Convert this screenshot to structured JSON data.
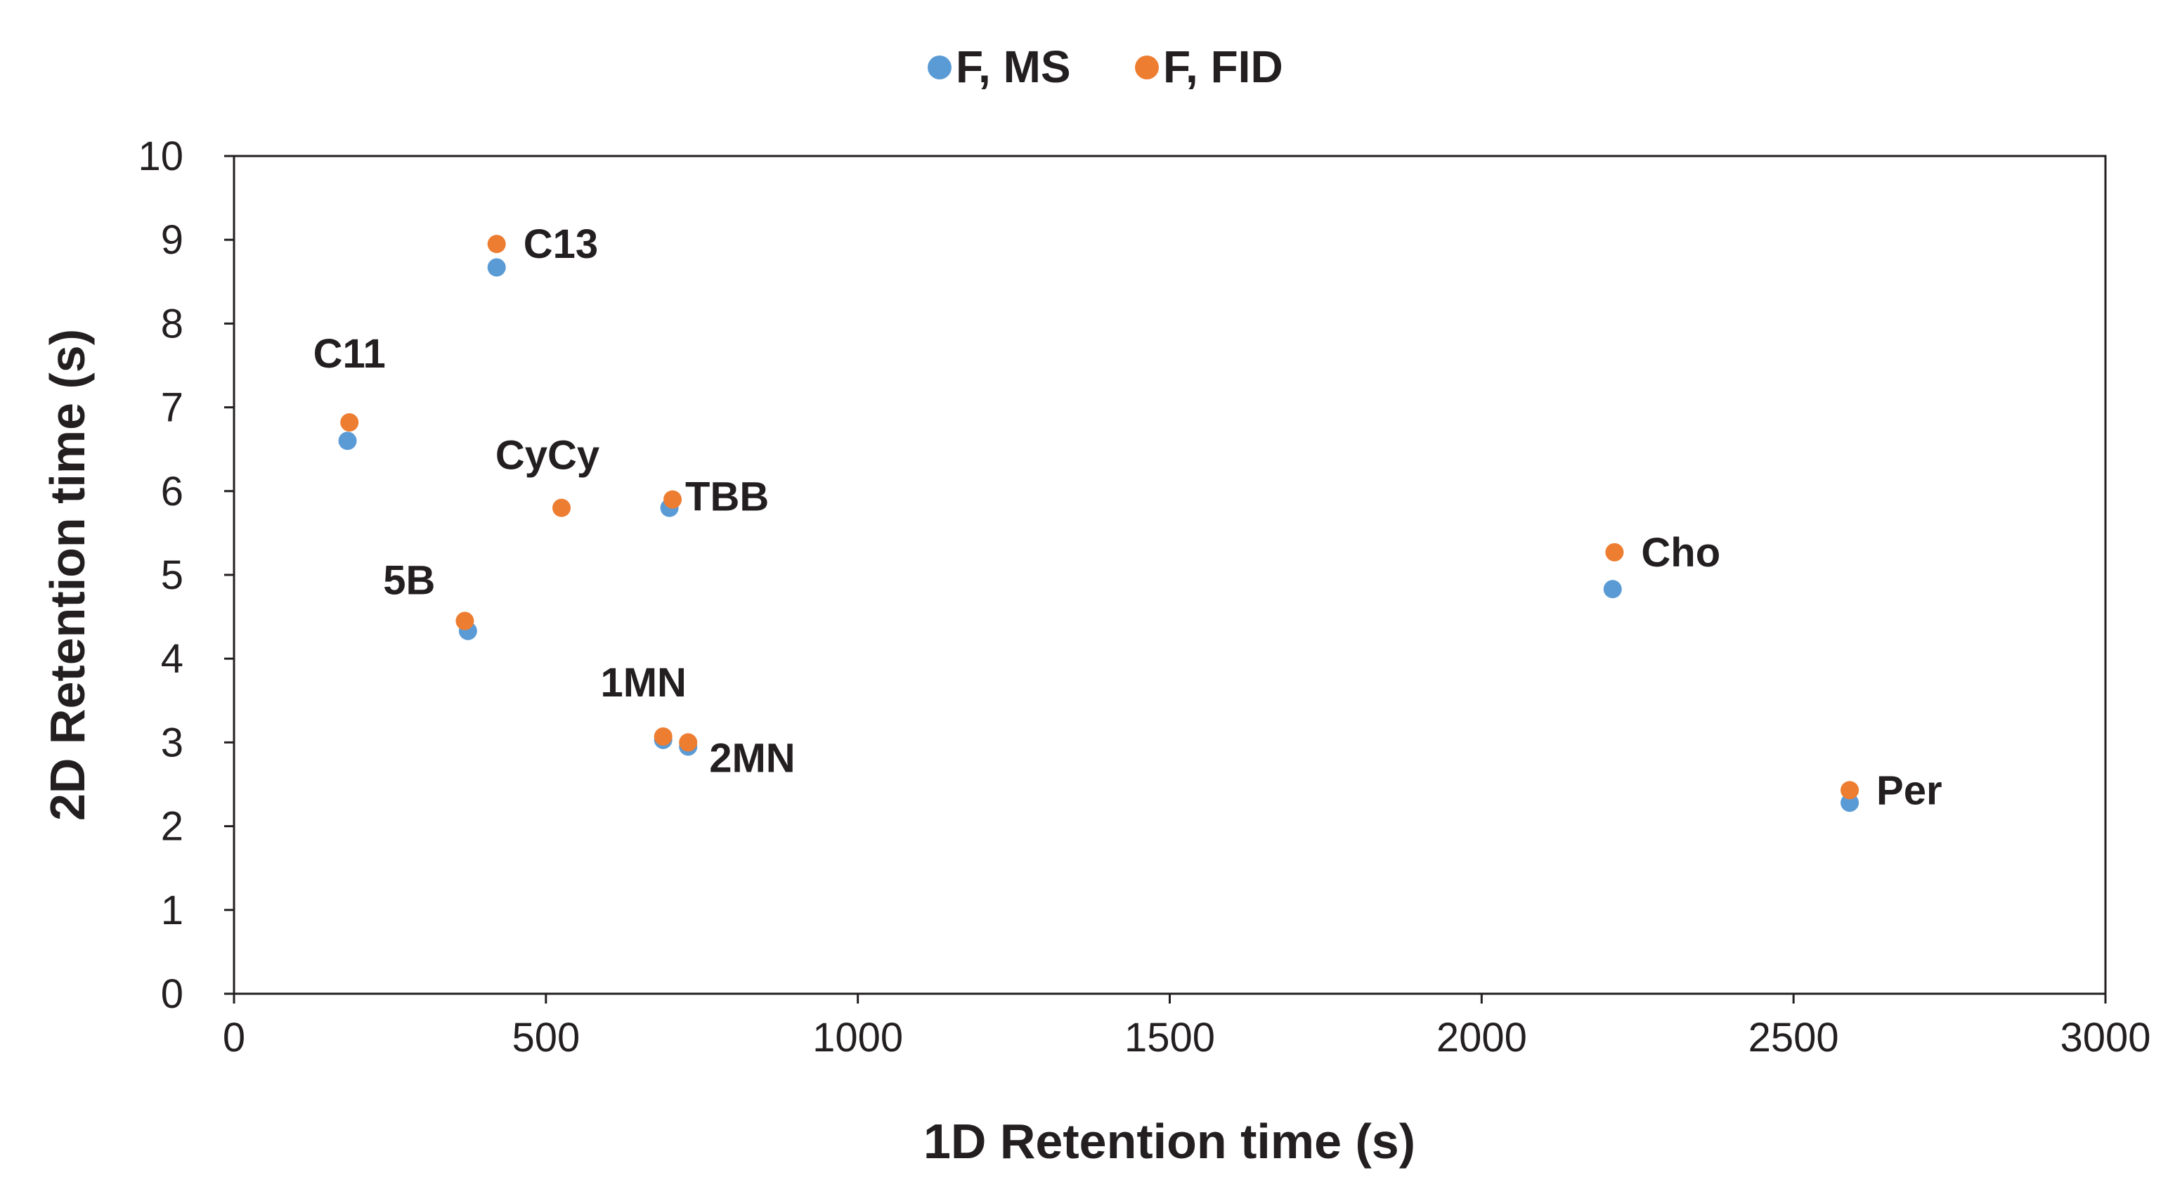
{
  "chart_data": {
    "type": "scatter",
    "title": "",
    "xlabel": "1D Retention time (s)",
    "ylabel": "2D Retention time (s)",
    "xlim": [
      0,
      3000
    ],
    "ylim": [
      0,
      10
    ],
    "xticks": [
      0,
      500,
      1000,
      1500,
      2000,
      2500,
      3000
    ],
    "yticks": [
      0,
      1,
      2,
      3,
      4,
      5,
      6,
      7,
      8,
      9,
      10
    ],
    "legend_position": "top-center",
    "grid": false,
    "series": [
      {
        "name": "F, MS",
        "color": "#5b9bd5",
        "points": [
          {
            "x": 182,
            "y": 6.6
          },
          {
            "x": 421,
            "y": 8.67
          },
          {
            "x": 375,
            "y": 4.33
          },
          {
            "x": 698,
            "y": 5.8
          },
          {
            "x": 688,
            "y": 3.03
          },
          {
            "x": 728,
            "y": 2.95
          },
          {
            "x": 2210,
            "y": 4.83
          },
          {
            "x": 2590,
            "y": 2.28
          }
        ]
      },
      {
        "name": "F, FID",
        "color": "#ed7d31",
        "points": [
          {
            "x": 185,
            "y": 6.82
          },
          {
            "x": 421,
            "y": 8.95
          },
          {
            "x": 525,
            "y": 5.8
          },
          {
            "x": 370,
            "y": 4.45
          },
          {
            "x": 703,
            "y": 5.9
          },
          {
            "x": 688,
            "y": 3.07
          },
          {
            "x": 728,
            "y": 3.0
          },
          {
            "x": 2213,
            "y": 5.27
          },
          {
            "x": 2590,
            "y": 2.43
          }
        ]
      }
    ],
    "annotations": [
      {
        "text": "C11",
        "x": 185,
        "y": 6.82,
        "position": "above"
      },
      {
        "text": "C13",
        "x": 421,
        "y": 8.95,
        "position": "right"
      },
      {
        "text": "CyCy",
        "x": 525,
        "y": 5.8,
        "position": "above-left"
      },
      {
        "text": "TBB",
        "x": 703,
        "y": 5.9,
        "position": "right"
      },
      {
        "text": "5B",
        "x": 370,
        "y": 4.45,
        "position": "above-left"
      },
      {
        "text": "1MN",
        "x": 688,
        "y": 3.07,
        "position": "above-left"
      },
      {
        "text": "2MN",
        "x": 728,
        "y": 3.0,
        "position": "below-right"
      },
      {
        "text": "Cho",
        "x": 2213,
        "y": 5.27,
        "position": "right"
      },
      {
        "text": "Per",
        "x": 2590,
        "y": 2.43,
        "position": "right"
      }
    ]
  }
}
